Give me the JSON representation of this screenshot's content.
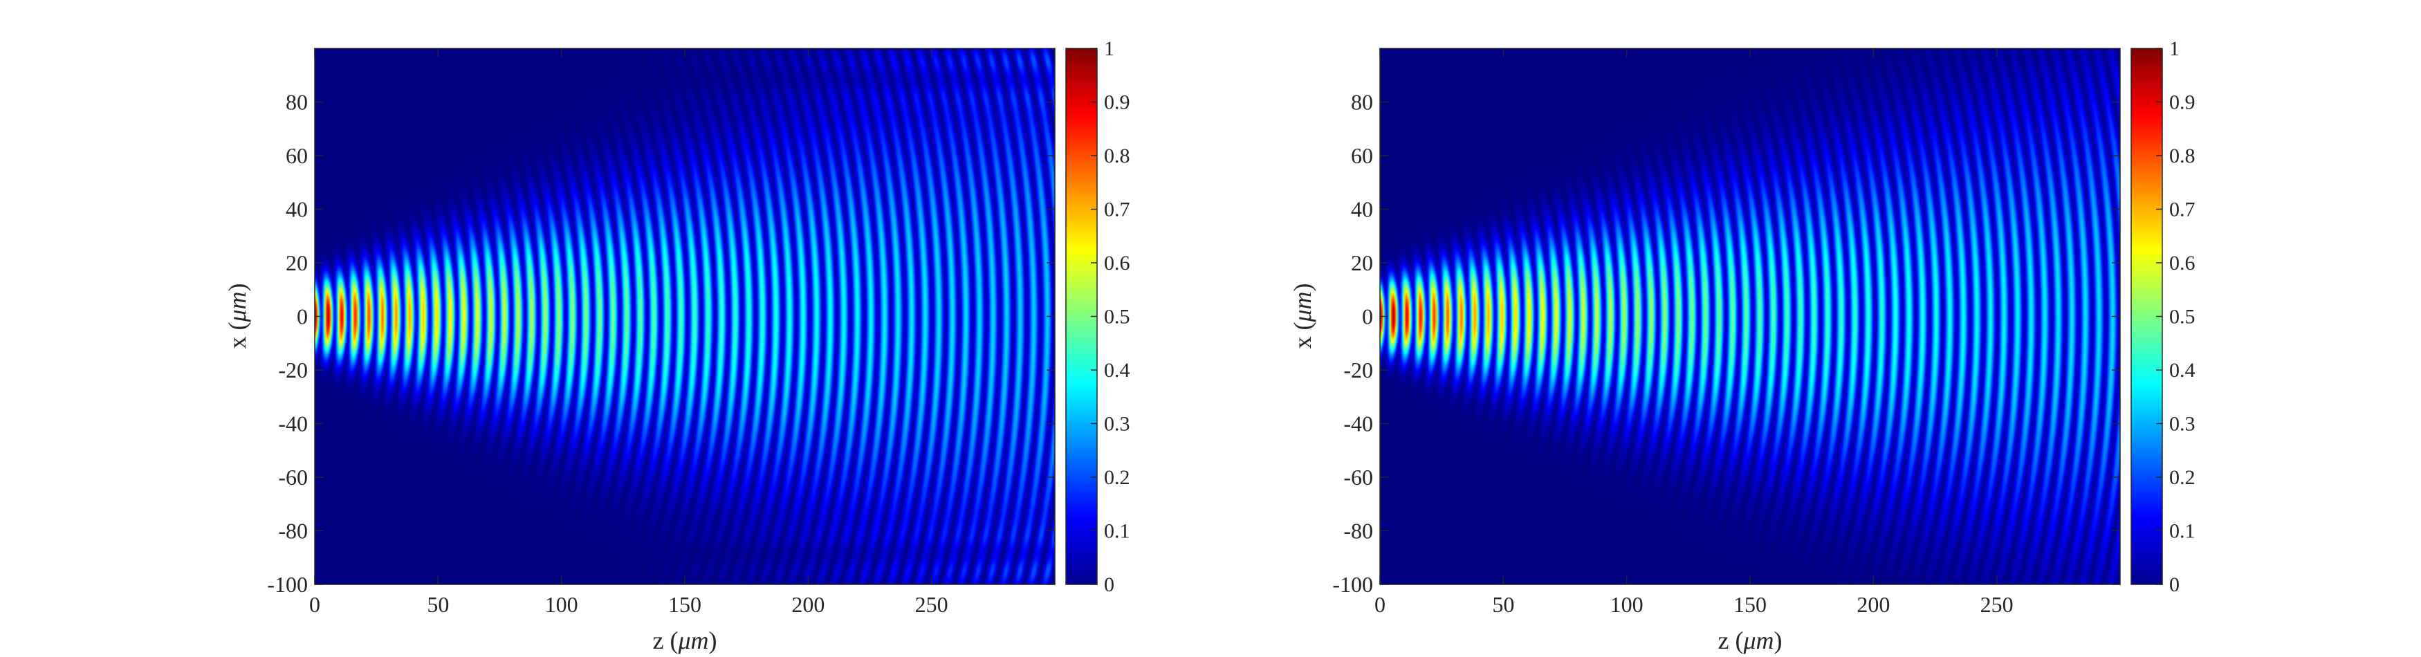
{
  "chart_data": [
    {
      "type": "heatmap",
      "title": "",
      "xlabel": "z (",
      "xlabel_unit": "μm",
      "xlabel_close": ")",
      "ylabel": "x (",
      "ylabel_unit": "μm",
      "ylabel_close": ")",
      "xlim": [
        0,
        300
      ],
      "ylim": [
        -100,
        100
      ],
      "x_ticks": [
        0,
        50,
        100,
        150,
        200,
        250
      ],
      "y_ticks": [
        -100,
        -80,
        -60,
        -40,
        -20,
        0,
        20,
        40,
        60,
        80
      ],
      "colormap": "jet",
      "colorbar": {
        "range": [
          0,
          1
        ],
        "ticks": [
          "0",
          "0.1",
          "0.2",
          "0.3",
          "0.4",
          "0.5",
          "0.6",
          "0.7",
          "0.8",
          "0.9",
          "1"
        ]
      },
      "field": {
        "description": "diverging beam with interference fringes; peak intensity 1 near z=0,x=0",
        "fringe_period_um": 5.5,
        "initial_halfwidth_um": 12,
        "divergence": 0.27,
        "peak_intensity": 1.0,
        "edge_interference": true
      }
    },
    {
      "type": "heatmap",
      "title": "",
      "xlabel": "z (",
      "xlabel_unit": "μm",
      "xlabel_close": ")",
      "ylabel": "x (",
      "ylabel_unit": "μm",
      "ylabel_close": ")",
      "xlim": [
        0,
        300
      ],
      "ylim": [
        -100,
        100
      ],
      "x_ticks": [
        0,
        50,
        100,
        150,
        200,
        250
      ],
      "y_ticks": [
        -100,
        -80,
        -60,
        -40,
        -20,
        0,
        20,
        40,
        60,
        80
      ],
      "colormap": "jet",
      "colorbar": {
        "range": [
          0,
          1
        ],
        "ticks": [
          "0",
          "0.1",
          "0.2",
          "0.3",
          "0.4",
          "0.5",
          "0.6",
          "0.7",
          "0.8",
          "0.9",
          "1"
        ]
      },
      "field": {
        "description": "diverging beam with interference fringes; peak intensity 1 near z=0,x=0",
        "fringe_period_um": 5.5,
        "initial_halfwidth_um": 12,
        "divergence": 0.24,
        "peak_intensity": 1.0,
        "edge_interference": false
      }
    }
  ]
}
